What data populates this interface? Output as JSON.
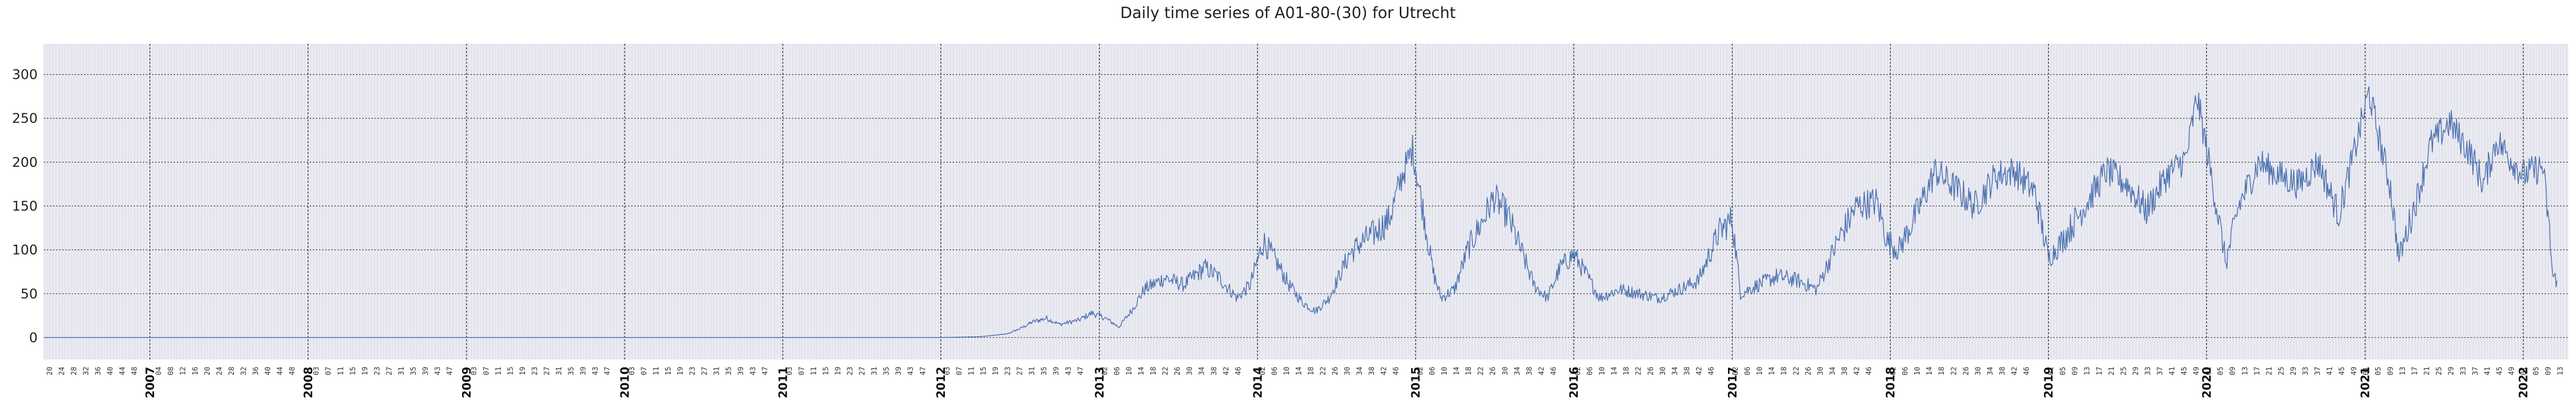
{
  "chart_data": {
    "type": "line",
    "title": "Daily time series of A01-80-(30) for Utrecht",
    "xlabel": "",
    "ylabel": "",
    "x_range": [
      "2006-05-01",
      "2022-04-15"
    ],
    "ylim": [
      -25,
      335
    ],
    "yticks": [
      0,
      50,
      100,
      150,
      200,
      250,
      300
    ],
    "grid": true,
    "year_labels": [
      "2007",
      "2008",
      "2009",
      "2010",
      "2011",
      "2012",
      "2013",
      "2014",
      "2015",
      "2016",
      "2017",
      "2018",
      "2019",
      "2020",
      "2021",
      "2022"
    ],
    "series": [
      {
        "points": [
          [
            "2006-05-01",
            0
          ],
          [
            "2012-01-01",
            0
          ],
          [
            "2012-04-01",
            1
          ],
          [
            "2012-06-01",
            4
          ],
          [
            "2012-07-01",
            10
          ],
          [
            "2012-08-01",
            18
          ],
          [
            "2012-09-01",
            22
          ],
          [
            "2012-10-01",
            15
          ],
          [
            "2012-11-15",
            20
          ],
          [
            "2012-12-15",
            28
          ],
          [
            "2013-01-15",
            22
          ],
          [
            "2013-02-15",
            12
          ],
          [
            "2013-03-15",
            30
          ],
          [
            "2013-04-15",
            55
          ],
          [
            "2013-06-01",
            68
          ],
          [
            "2013-07-15",
            60
          ],
          [
            "2013-09-01",
            80
          ],
          [
            "2013-10-01",
            70
          ],
          [
            "2013-11-15",
            45
          ],
          [
            "2013-12-15",
            60
          ],
          [
            "2014-01-15",
            110
          ],
          [
            "2014-02-15",
            85
          ],
          [
            "2014-03-15",
            60
          ],
          [
            "2014-04-15",
            40
          ],
          [
            "2014-05-15",
            30
          ],
          [
            "2014-06-15",
            45
          ],
          [
            "2014-08-01",
            95
          ],
          [
            "2014-09-01",
            110
          ],
          [
            "2014-10-01",
            120
          ],
          [
            "2014-11-01",
            135
          ],
          [
            "2014-12-01",
            185
          ],
          [
            "2014-12-25",
            215
          ],
          [
            "2015-01-20",
            140
          ],
          [
            "2015-02-10",
            75
          ],
          [
            "2015-03-01",
            45
          ],
          [
            "2015-04-01",
            55
          ],
          [
            "2015-05-01",
            100
          ],
          [
            "2015-06-01",
            130
          ],
          [
            "2015-07-01",
            160
          ],
          [
            "2015-08-01",
            140
          ],
          [
            "2015-09-01",
            100
          ],
          [
            "2015-10-01",
            60
          ],
          [
            "2015-11-01",
            45
          ],
          [
            "2015-12-01",
            80
          ],
          [
            "2016-01-01",
            95
          ],
          [
            "2016-02-01",
            70
          ],
          [
            "2016-03-01",
            45
          ],
          [
            "2016-04-15",
            55
          ],
          [
            "2016-06-01",
            50
          ],
          [
            "2016-07-15",
            45
          ],
          [
            "2016-09-01",
            55
          ],
          [
            "2016-10-15",
            65
          ],
          [
            "2016-12-01",
            120
          ],
          [
            "2017-01-01",
            135
          ],
          [
            "2017-01-20",
            50
          ],
          [
            "2017-03-01",
            60
          ],
          [
            "2017-04-15",
            70
          ],
          [
            "2017-06-01",
            65
          ],
          [
            "2017-07-15",
            55
          ],
          [
            "2017-09-01",
            110
          ],
          [
            "2017-10-15",
            150
          ],
          [
            "2017-12-01",
            155
          ],
          [
            "2017-12-25",
            110
          ],
          [
            "2018-01-20",
            100
          ],
          [
            "2018-03-01",
            140
          ],
          [
            "2018-04-15",
            190
          ],
          [
            "2018-06-01",
            170
          ],
          [
            "2018-07-15",
            150
          ],
          [
            "2018-09-01",
            185
          ],
          [
            "2018-10-15",
            190
          ],
          [
            "2018-12-01",
            165
          ],
          [
            "2019-01-01",
            90
          ],
          [
            "2019-02-01",
            110
          ],
          [
            "2019-04-01",
            155
          ],
          [
            "2019-05-15",
            190
          ],
          [
            "2019-07-01",
            175
          ],
          [
            "2019-08-15",
            145
          ],
          [
            "2019-10-01",
            185
          ],
          [
            "2019-11-15",
            205
          ],
          [
            "2019-12-10",
            275
          ],
          [
            "2020-01-10",
            190
          ],
          [
            "2020-02-15",
            85
          ],
          [
            "2020-03-15",
            150
          ],
          [
            "2020-05-01",
            200
          ],
          [
            "2020-06-15",
            185
          ],
          [
            "2020-08-01",
            175
          ],
          [
            "2020-09-15",
            200
          ],
          [
            "2020-11-01",
            140
          ],
          [
            "2020-12-01",
            200
          ],
          [
            "2021-01-10",
            280
          ],
          [
            "2021-02-01",
            230
          ],
          [
            "2021-03-01",
            170
          ],
          [
            "2021-03-20",
            90
          ],
          [
            "2021-05-01",
            160
          ],
          [
            "2021-06-01",
            220
          ],
          [
            "2021-07-15",
            245
          ],
          [
            "2021-09-01",
            210
          ],
          [
            "2021-10-01",
            175
          ],
          [
            "2021-11-01",
            225
          ],
          [
            "2021-12-01",
            205
          ],
          [
            "2022-01-01",
            185
          ],
          [
            "2022-02-15",
            195
          ],
          [
            "2022-03-01",
            130
          ],
          [
            "2022-03-10",
            70
          ],
          [
            "2022-03-20",
            65
          ]
        ]
      }
    ]
  }
}
